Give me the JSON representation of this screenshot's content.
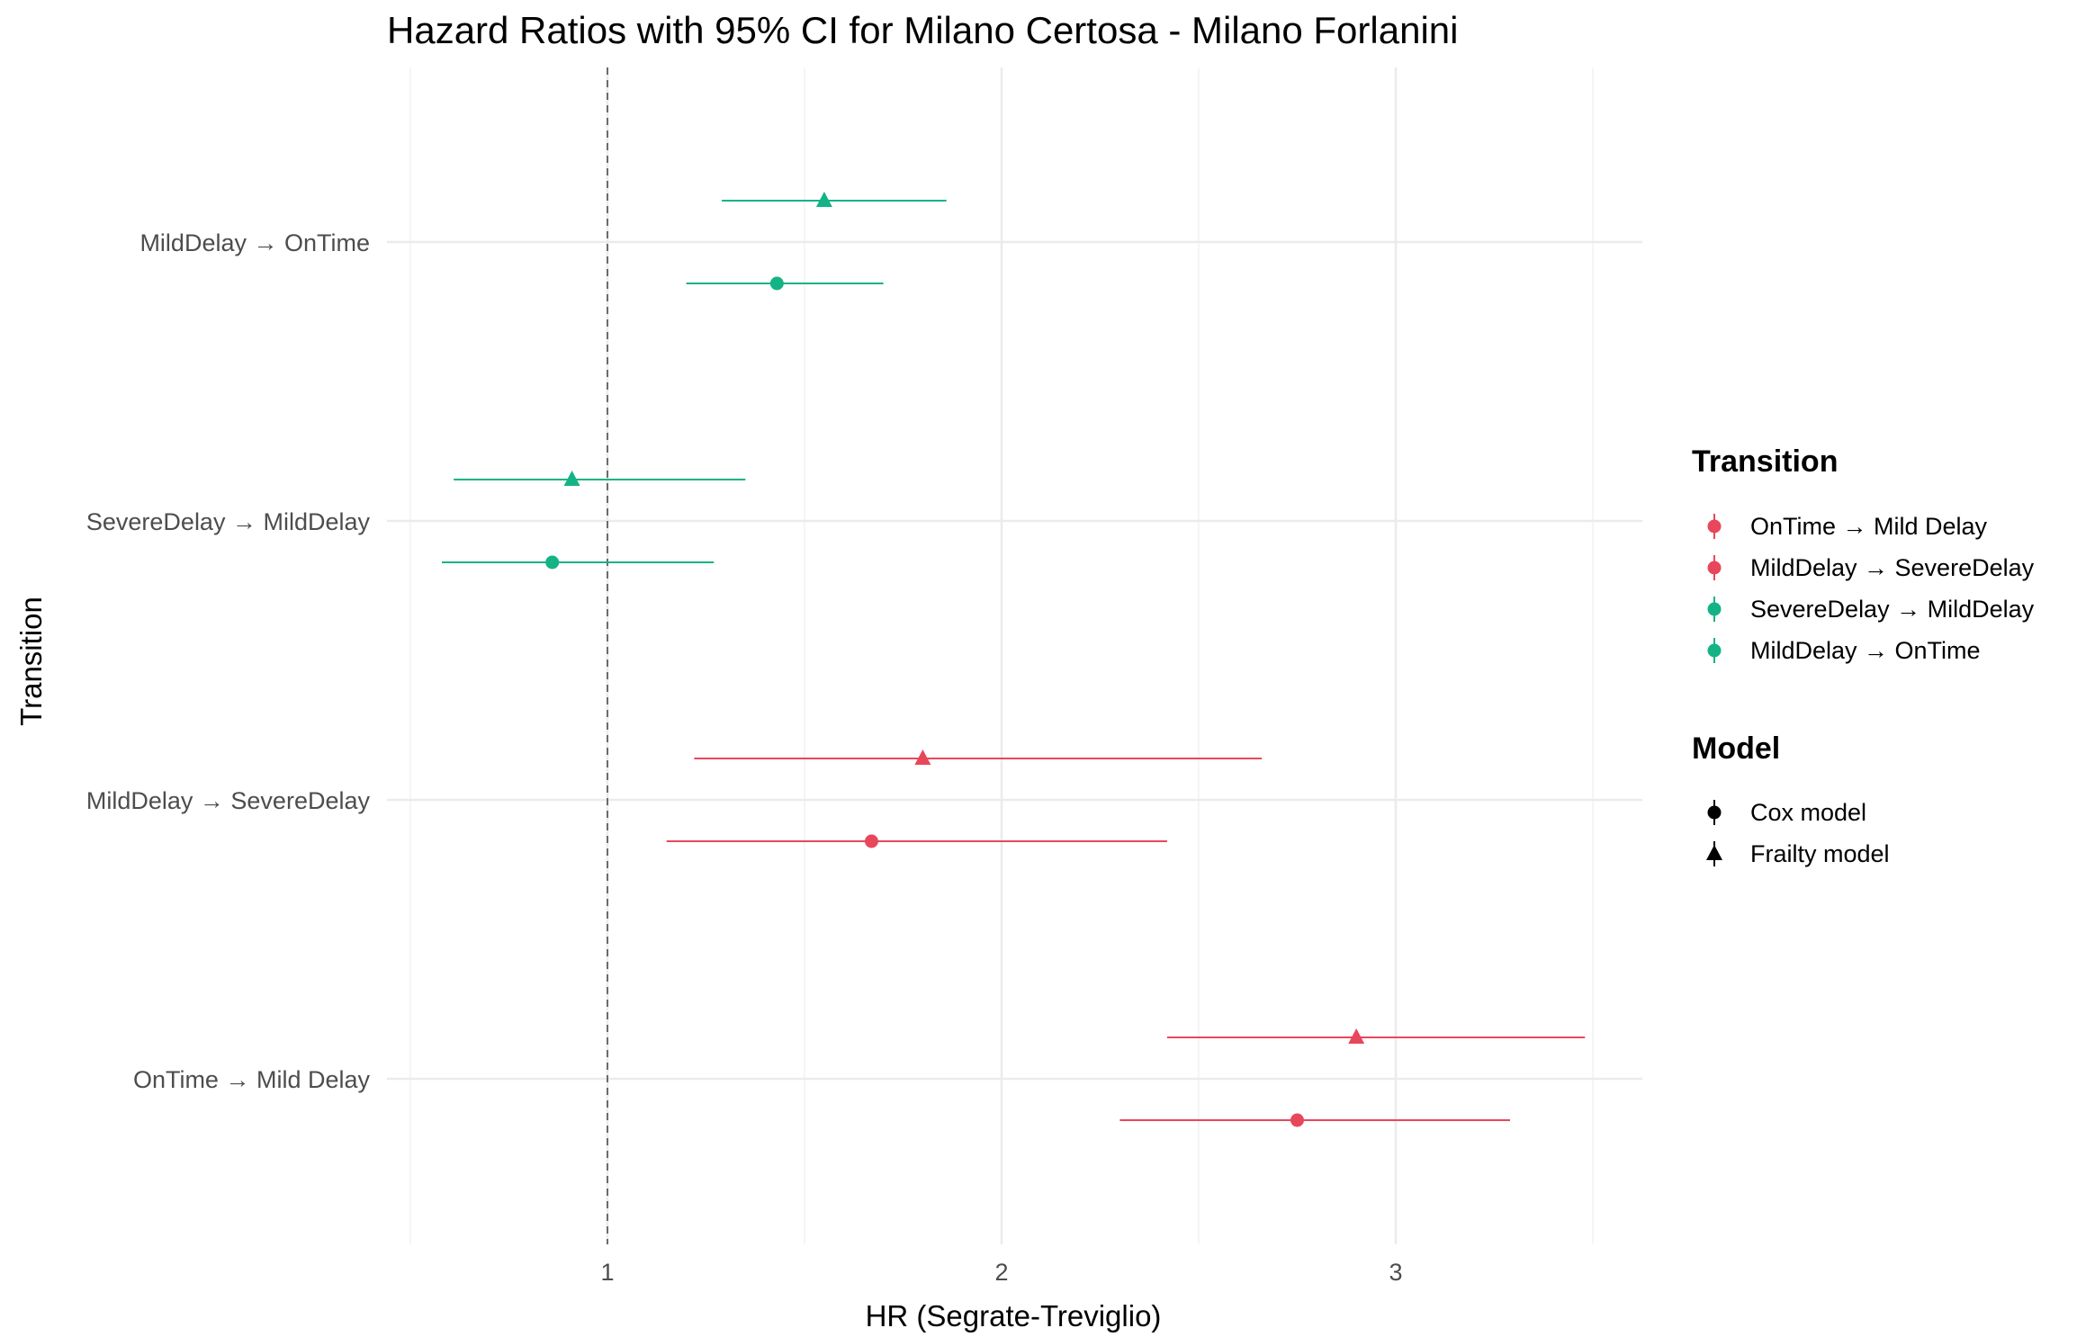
{
  "chart_data": {
    "type": "scatter",
    "title": "Hazard Ratios with 95% CI for Milano Certosa - Milano Forlanini",
    "xlabel": "HR (Segrate-Treviglio)",
    "ylabel": "Transition",
    "xlim": [
      0.5,
      3.5
    ],
    "x_ticks": [
      "1",
      "2",
      "3"
    ],
    "x_tick_values": [
      1,
      2,
      3
    ],
    "reference_line": 1,
    "grid": true,
    "legend_position": "right",
    "categories": [
      "OnTime → Mild Delay",
      "MildDelay → SevereDelay",
      "SevereDelay → MildDelay",
      "MildDelay → OnTime"
    ],
    "legends": {
      "transition": {
        "title": "Transition",
        "items": [
          {
            "label": "OnTime → Mild Delay",
            "color": "#E8475B"
          },
          {
            "label": "MildDelay → SevereDelay",
            "color": "#E8475B"
          },
          {
            "label": "SevereDelay → MildDelay",
            "color": "#14B386"
          },
          {
            "label": "MildDelay → OnTime",
            "color": "#14B386"
          }
        ]
      },
      "model": {
        "title": "Model",
        "items": [
          {
            "label": "Cox model",
            "shape": "circle"
          },
          {
            "label": "Frailty model",
            "shape": "triangle"
          }
        ]
      }
    },
    "series": [
      {
        "name": "Cox model",
        "shape": "circle",
        "points": [
          {
            "category": "OnTime → Mild Delay",
            "hr": 2.75,
            "lower": 2.3,
            "upper": 3.29,
            "color": "#E8475B"
          },
          {
            "category": "MildDelay → SevereDelay",
            "hr": 1.67,
            "lower": 1.15,
            "upper": 2.42,
            "color": "#E8475B"
          },
          {
            "category": "SevereDelay → MildDelay",
            "hr": 0.86,
            "lower": 0.58,
            "upper": 1.27,
            "color": "#14B386"
          },
          {
            "category": "MildDelay → OnTime",
            "hr": 1.43,
            "lower": 1.2,
            "upper": 1.7,
            "color": "#14B386"
          }
        ]
      },
      {
        "name": "Frailty model",
        "shape": "triangle",
        "points": [
          {
            "category": "OnTime → Mild Delay",
            "hr": 2.9,
            "lower": 2.42,
            "upper": 3.48,
            "color": "#E8475B"
          },
          {
            "category": "MildDelay → SevereDelay",
            "hr": 1.8,
            "lower": 1.22,
            "upper": 2.66,
            "color": "#E8475B"
          },
          {
            "category": "SevereDelay → MildDelay",
            "hr": 0.91,
            "lower": 0.61,
            "upper": 1.35,
            "color": "#14B386"
          },
          {
            "category": "MildDelay → OnTime",
            "hr": 1.55,
            "lower": 1.29,
            "upper": 1.86,
            "color": "#14B386"
          }
        ]
      }
    ]
  }
}
